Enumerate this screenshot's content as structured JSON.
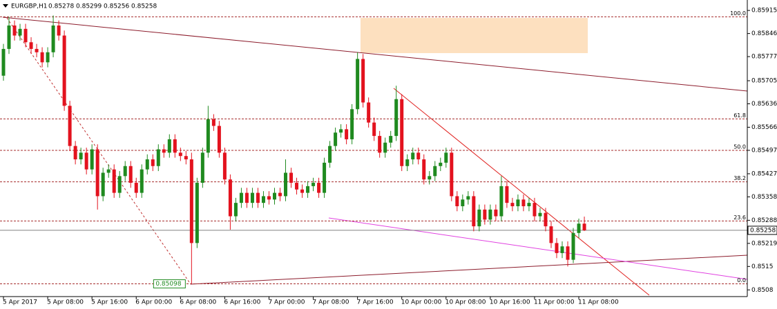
{
  "chart_data": {
    "type": "candlestick",
    "title": "EURGBP,H1",
    "title_values": [
      0.85278,
      0.85299,
      0.85256,
      0.85258
    ],
    "categories": [
      "5 Apr 2017",
      null,
      null,
      null,
      null,
      null,
      null,
      null,
      "5 Apr 08:00",
      null,
      null,
      null,
      null,
      null,
      null,
      null,
      "5 Apr 16:00",
      null,
      null,
      null,
      null,
      null,
      null,
      null,
      "6 Apr 00:00",
      null,
      null,
      null,
      null,
      null,
      null,
      null,
      "6 Apr 08:00",
      null,
      null,
      null,
      null,
      null,
      null,
      null,
      "6 Apr 16:00",
      null,
      null,
      null,
      null,
      null,
      null,
      null,
      "7 Apr 00:00",
      null,
      null,
      null,
      null,
      null,
      null,
      null,
      "7 Apr 08:00",
      null,
      null,
      null,
      null,
      null,
      null,
      null,
      "7 Apr 16:00",
      null,
      null,
      null,
      null,
      null,
      null,
      null,
      "10 Apr 00:00",
      null,
      null,
      null,
      null,
      null,
      null,
      null,
      "10 Apr 08:00",
      null,
      null,
      null,
      null,
      null,
      null,
      null,
      "10 Apr 16:00",
      null,
      null,
      null,
      null,
      null,
      null,
      null,
      "11 Apr 00:00",
      null,
      null,
      null,
      null,
      null,
      null,
      null,
      "11 Apr 08:00",
      null
    ],
    "open": [
      0.8572,
      0.858,
      0.8587,
      0.8584,
      0.8586,
      0.8582,
      0.858,
      0.8579,
      0.8576,
      0.8579,
      0.8587,
      0.8584,
      0.8563,
      0.8551,
      0.8547,
      0.8549,
      0.8544,
      0.855,
      0.8536,
      0.8543,
      0.8544,
      0.8537,
      0.8542,
      0.8545,
      0.854,
      0.8537,
      0.8544,
      0.8547,
      0.8545,
      0.855,
      0.8549,
      0.8553,
      0.8549,
      0.8548,
      0.8547,
      0.8522,
      0.854,
      0.8549,
      0.8559,
      0.8557,
      0.8549,
      0.8541,
      0.853,
      0.8534,
      0.8537,
      0.8534,
      0.8537,
      0.8534,
      0.8536,
      0.8535,
      0.8537,
      0.8536,
      0.8543,
      0.854,
      0.8538,
      0.8537,
      0.8539,
      0.854,
      0.8537,
      0.8546,
      0.8551,
      0.8555,
      0.8556,
      0.8553,
      0.8562,
      0.8577,
      0.8564,
      0.8558,
      0.8554,
      0.8549,
      0.8552,
      0.8554,
      0.8565,
      0.8545,
      0.8547,
      0.8549,
      0.8547,
      0.8541,
      0.8542,
      0.8545,
      0.8546,
      0.8549,
      0.8536,
      0.8533,
      0.8535,
      0.8536,
      0.8527,
      0.8532,
      0.8529,
      0.8532,
      0.853,
      0.8539,
      0.8534,
      0.8533,
      0.8535,
      0.8533,
      0.8534,
      0.853,
      0.8531,
      0.8527,
      0.8522,
      0.8519,
      0.8521,
      0.8517,
      0.8525,
      0.85278
    ],
    "high": [
      0.85815,
      0.85896,
      0.85885,
      0.85875,
      0.85875,
      0.85835,
      0.85815,
      0.85805,
      0.85805,
      0.859,
      0.85885,
      0.85855,
      0.85645,
      0.85525,
      0.85505,
      0.85505,
      0.85515,
      0.85515,
      0.85445,
      0.85455,
      0.85455,
      0.85435,
      0.85465,
      0.85465,
      0.85415,
      0.85455,
      0.85485,
      0.85485,
      0.85515,
      0.85515,
      0.85545,
      0.85545,
      0.85505,
      0.85495,
      0.8549,
      0.85415,
      0.85505,
      0.8563,
      0.85605,
      0.85585,
      0.85505,
      0.85425,
      0.85355,
      0.85385,
      0.85385,
      0.85385,
      0.85385,
      0.85375,
      0.85375,
      0.85385,
      0.85385,
      0.8547,
      0.85445,
      0.85415,
      0.85395,
      0.85405,
      0.85415,
      0.85415,
      0.85475,
      0.85525,
      0.85565,
      0.85575,
      0.85575,
      0.85635,
      0.8579,
      0.85785,
      0.85655,
      0.85595,
      0.85555,
      0.85535,
      0.85555,
      0.8569,
      0.85665,
      0.85485,
      0.85505,
      0.85505,
      0.85485,
      0.85435,
      0.85465,
      0.85475,
      0.85505,
      0.85505,
      0.85375,
      0.85365,
      0.85375,
      0.85375,
      0.85335,
      0.85335,
      0.85335,
      0.85335,
      0.8542,
      0.85405,
      0.85355,
      0.85365,
      0.85365,
      0.85355,
      0.85355,
      0.85325,
      0.85325,
      0.85285,
      0.85235,
      0.85225,
      0.85225,
      0.85265,
      0.85293,
      0.85299
    ],
    "low": [
      0.85705,
      0.85785,
      0.85825,
      0.85825,
      0.85805,
      0.85785,
      0.85775,
      0.85745,
      0.85745,
      0.85775,
      0.85825,
      0.85615,
      0.85495,
      0.85455,
      0.85455,
      0.85425,
      0.85425,
      0.8532,
      0.85345,
      0.85415,
      0.85355,
      0.85355,
      0.85405,
      0.85385,
      0.85355,
      0.85355,
      0.85425,
      0.85435,
      0.85435,
      0.85475,
      0.85475,
      0.85475,
      0.85465,
      0.85455,
      0.85098,
      0.85205,
      0.85385,
      0.85475,
      0.85555,
      0.85475,
      0.85395,
      0.8526,
      0.85285,
      0.85325,
      0.85325,
      0.85325,
      0.85325,
      0.85325,
      0.85335,
      0.85335,
      0.85345,
      0.85345,
      0.85385,
      0.85365,
      0.85355,
      0.85355,
      0.85375,
      0.85355,
      0.85355,
      0.85445,
      0.85495,
      0.85535,
      0.85515,
      0.85515,
      0.85605,
      0.85625,
      0.85565,
      0.85525,
      0.85475,
      0.85475,
      0.85505,
      0.85525,
      0.85435,
      0.85435,
      0.85455,
      0.85455,
      0.85395,
      0.85395,
      0.85405,
      0.85435,
      0.85445,
      0.85345,
      0.85315,
      0.85315,
      0.85335,
      0.85255,
      0.85255,
      0.85275,
      0.85275,
      0.85285,
      0.85285,
      0.85325,
      0.85315,
      0.85315,
      0.85315,
      0.85315,
      0.85285,
      0.85285,
      0.85255,
      0.85205,
      0.85175,
      0.85175,
      0.8515,
      0.8516,
      0.85235,
      0.85256
    ],
    "close": [
      0.858,
      0.8587,
      0.8584,
      0.8586,
      0.8582,
      0.858,
      0.8579,
      0.8576,
      0.8579,
      0.8587,
      0.8584,
      0.8563,
      0.8551,
      0.8547,
      0.8549,
      0.8544,
      0.855,
      0.8536,
      0.8543,
      0.8544,
      0.8537,
      0.8542,
      0.8545,
      0.854,
      0.8537,
      0.8544,
      0.8547,
      0.8545,
      0.855,
      0.8549,
      0.8553,
      0.8549,
      0.8548,
      0.8547,
      0.8522,
      0.854,
      0.8549,
      0.8559,
      0.8557,
      0.8549,
      0.8541,
      0.853,
      0.8534,
      0.8537,
      0.8534,
      0.8537,
      0.8534,
      0.8536,
      0.8535,
      0.8537,
      0.8536,
      0.8543,
      0.854,
      0.8538,
      0.8537,
      0.8539,
      0.854,
      0.8537,
      0.8546,
      0.8551,
      0.8555,
      0.8556,
      0.8553,
      0.8562,
      0.8577,
      0.8564,
      0.8558,
      0.8554,
      0.8549,
      0.8552,
      0.8554,
      0.8565,
      0.8545,
      0.8547,
      0.8549,
      0.8547,
      0.8541,
      0.8542,
      0.8545,
      0.8546,
      0.8549,
      0.8536,
      0.8533,
      0.8535,
      0.8536,
      0.8527,
      0.8532,
      0.8529,
      0.8532,
      0.853,
      0.8539,
      0.8534,
      0.8533,
      0.8535,
      0.8533,
      0.8534,
      0.853,
      0.8531,
      0.8527,
      0.8522,
      0.8519,
      0.8521,
      0.8517,
      0.8525,
      0.85278,
      0.85258
    ],
    "up_color": "#1f8a1f",
    "down_color": "#e3121e",
    "ylim": [
      0.8506,
      0.8594
    ],
    "yticks": [
      0.85915,
      0.85846,
      0.85777,
      0.85705,
      0.85636,
      0.85566,
      0.85497,
      0.85427,
      0.85358,
      0.85288,
      0.85219,
      0.8515,
      0.8508
    ],
    "fib_levels": [
      {
        "value": 0.85896,
        "label": "100.0"
      },
      {
        "value": 0.85591,
        "label": "61.8"
      },
      {
        "value": 0.85497,
        "label": "50.0"
      },
      {
        "value": 0.85403,
        "label": "38.2"
      },
      {
        "value": 0.85286,
        "label": "23.6"
      },
      {
        "value": 0.85098,
        "label": "0.0"
      }
    ],
    "fib_color": "#a52a2a",
    "price_line": 0.85258,
    "low_marker": 0.85098
  }
}
